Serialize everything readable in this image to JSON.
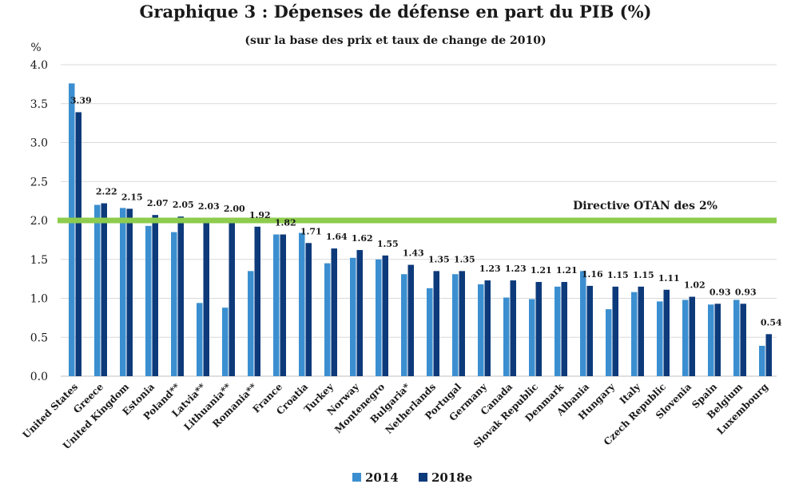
{
  "chart_data": {
    "type": "bar",
    "title": "Graphique 3 : Dépenses de défense en part du PIB (%)",
    "subtitle": "(sur la base des prix et taux de change de 2010)",
    "ylabel": "%",
    "ylim": [
      0,
      4.0
    ],
    "yticks": [
      "0.0",
      "0.5",
      "1.0",
      "1.5",
      "2.0",
      "2.5",
      "3.0",
      "3.5",
      "4.0"
    ],
    "grid": true,
    "legend_position": "bottom",
    "categories": [
      "United States",
      "Greece",
      "United Kingdom",
      "Estonia",
      "Poland**",
      "Latvia**",
      "Lithuania**",
      "Romania**",
      "France",
      "Croatia",
      "Turkey",
      "Norway",
      "Montenegro",
      "Bulgaria*",
      "Netherlands",
      "Portugal",
      "Germany",
      "Canada",
      "Slovak Republic",
      "Denmark",
      "Albania",
      "Hungary",
      "Italy",
      "Czech Republic",
      "Slovenia",
      "Spain",
      "Belgium",
      "Luxembourg"
    ],
    "series": [
      {
        "name": "2014",
        "color": "#3b8fd0",
        "values": [
          3.76,
          2.2,
          2.16,
          1.93,
          1.85,
          0.94,
          0.88,
          1.35,
          1.82,
          1.84,
          1.45,
          1.52,
          1.5,
          1.31,
          1.13,
          1.31,
          1.18,
          1.01,
          0.99,
          1.15,
          1.35,
          0.86,
          1.08,
          0.96,
          0.98,
          0.92,
          0.98,
          0.39
        ]
      },
      {
        "name": "2018e",
        "color": "#0d3a7a",
        "values": [
          3.39,
          2.22,
          2.15,
          2.07,
          2.05,
          2.03,
          2.0,
          1.92,
          1.82,
          1.71,
          1.64,
          1.62,
          1.55,
          1.43,
          1.35,
          1.35,
          1.23,
          1.23,
          1.21,
          1.21,
          1.16,
          1.15,
          1.15,
          1.11,
          1.02,
          0.93,
          0.93,
          0.54
        ]
      }
    ],
    "data_labels": [
      "3.39",
      "2.22",
      "2.15",
      "2.07",
      "2.05",
      "2.03",
      "2.00",
      "1.92",
      "1.82",
      "1.71",
      "1.64",
      "1.62",
      "1.55",
      "1.43",
      "1.35",
      "1.35",
      "1.23",
      "1.23",
      "1.21",
      "1.21",
      "1.16",
      "1.15",
      "1.15",
      "1.11",
      "1.02",
      "0.93",
      "0.93",
      "0.54"
    ],
    "reference_line": {
      "value": 2.0,
      "label": "Directive OTAN des 2%",
      "color": "#8dcc4e"
    }
  }
}
